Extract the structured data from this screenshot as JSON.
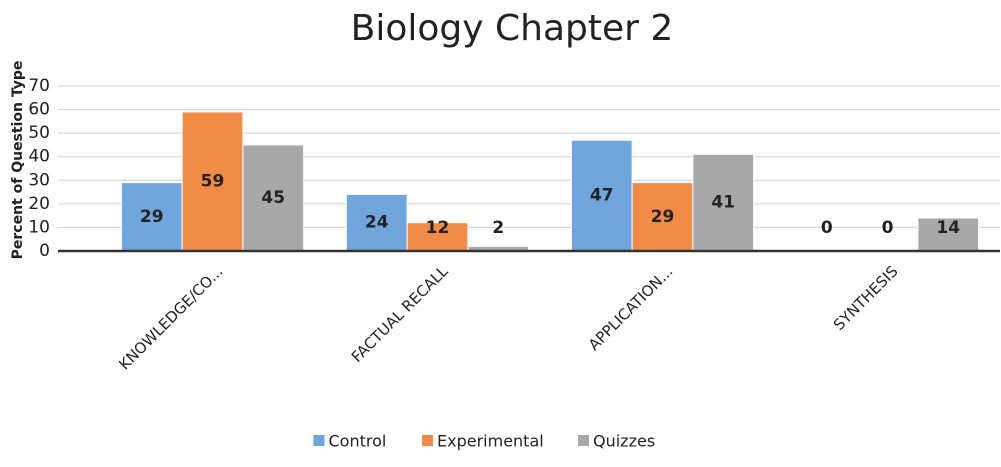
{
  "chart_data": {
    "type": "bar",
    "title": "Biology Chapter 2",
    "y_label": "Percent of Question Type",
    "categories": [
      "KNOWLEDGE/CO...",
      "FACTUAL RECALL",
      "APPLICATION...",
      "SYNTHESIS"
    ],
    "series": [
      {
        "name": "Control",
        "color": "#6fa6dd",
        "values": [
          29,
          24,
          47,
          0
        ]
      },
      {
        "name": "Experimental",
        "color": "#f08c48",
        "values": [
          59,
          12,
          29,
          0
        ]
      },
      {
        "name": "Quizzes",
        "color": "#a8a8a8",
        "values": [
          45,
          2,
          41,
          14
        ]
      }
    ],
    "ylim": [
      0,
      70
    ],
    "yticks": [
      0,
      10,
      20,
      30,
      40,
      50,
      60,
      70
    ],
    "grid": true,
    "legend": "bottom"
  }
}
